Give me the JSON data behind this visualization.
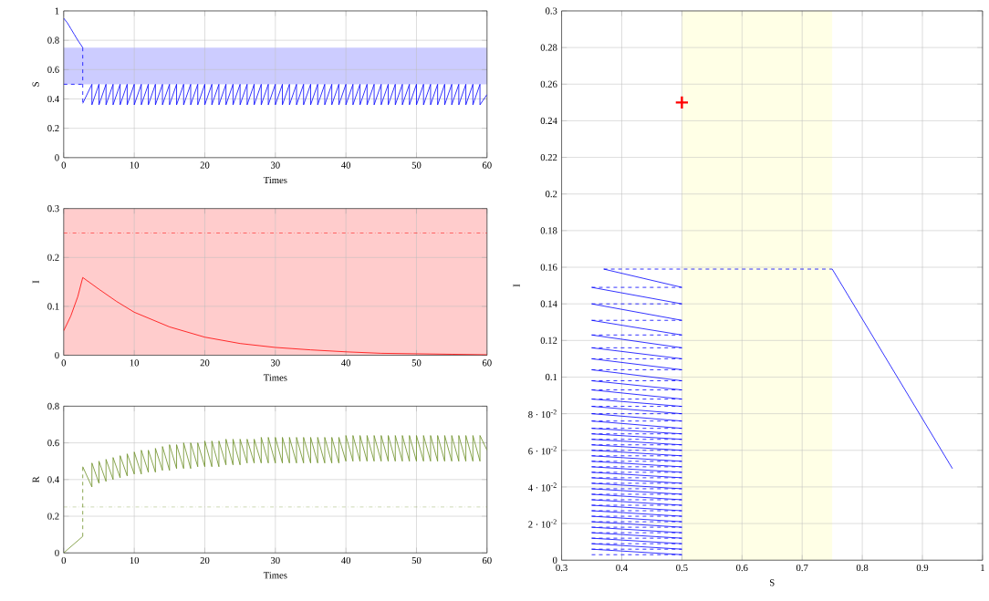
{
  "chart_data": [
    {
      "type": "line",
      "xlabel": "Times",
      "ylabel": "S",
      "xlim": [
        0,
        60
      ],
      "ylim": [
        0,
        1
      ],
      "xticks": [
        0,
        10,
        20,
        30,
        40,
        50,
        60
      ],
      "yticks": [
        0,
        0.2,
        0.4,
        0.6,
        0.8,
        1
      ],
      "grid": true,
      "bands": [
        {
          "axis": "y",
          "from": 0.5,
          "to": 0.75,
          "color": "#ccccff"
        }
      ],
      "series": [
        {
          "color": "#0000ff",
          "line_style": "solid",
          "x": [
            0,
            0.5,
            1,
            1.5,
            2,
            2.7
          ],
          "values": [
            0.95,
            0.92,
            0.88,
            0.84,
            0.8,
            0.75
          ]
        },
        {
          "color": "#0000ff",
          "line_style": "dashed",
          "x": [
            2.7,
            2.7
          ],
          "values": [
            0.75,
            0.37
          ]
        },
        {
          "color": "#0000ff",
          "line_style": "dashed",
          "x": [
            0,
            2.7
          ],
          "values": [
            0.5,
            0.5
          ]
        },
        {
          "color": "#0000ff",
          "line_style": "solid",
          "x": [
            2.7,
            4,
            4,
            5,
            5,
            6,
            6,
            7,
            7,
            8,
            8,
            9,
            9,
            10,
            10,
            11,
            11,
            12,
            12,
            13,
            13,
            14,
            14,
            15,
            15,
            16,
            16,
            17,
            17,
            18,
            18,
            19,
            19,
            20,
            20,
            21,
            21,
            22,
            22,
            23,
            23,
            24,
            24,
            25,
            25,
            26,
            26,
            27,
            27,
            28,
            28,
            29,
            29,
            30,
            30,
            31,
            31,
            32,
            32,
            33,
            33,
            34,
            34,
            35,
            35,
            36,
            36,
            37,
            37,
            38,
            38,
            39,
            39,
            40,
            40,
            41,
            41,
            42,
            42,
            43,
            43,
            44,
            44,
            45,
            45,
            46,
            46,
            47,
            47,
            48,
            48,
            49,
            49,
            50,
            50,
            51,
            51,
            52,
            52,
            53,
            53,
            54,
            54,
            55,
            55,
            56,
            56,
            57,
            57,
            58,
            58,
            59,
            59,
            60
          ],
          "values": [
            0.37,
            0.5,
            0.36,
            0.5,
            0.36,
            0.5,
            0.36,
            0.5,
            0.36,
            0.5,
            0.36,
            0.5,
            0.36,
            0.5,
            0.36,
            0.5,
            0.36,
            0.5,
            0.36,
            0.5,
            0.36,
            0.5,
            0.36,
            0.5,
            0.36,
            0.5,
            0.36,
            0.5,
            0.36,
            0.5,
            0.36,
            0.5,
            0.36,
            0.5,
            0.36,
            0.5,
            0.36,
            0.5,
            0.36,
            0.5,
            0.36,
            0.5,
            0.36,
            0.5,
            0.36,
            0.5,
            0.36,
            0.5,
            0.36,
            0.5,
            0.36,
            0.5,
            0.36,
            0.5,
            0.36,
            0.5,
            0.36,
            0.5,
            0.36,
            0.5,
            0.36,
            0.5,
            0.36,
            0.5,
            0.36,
            0.5,
            0.36,
            0.5,
            0.36,
            0.5,
            0.36,
            0.5,
            0.36,
            0.5,
            0.36,
            0.5,
            0.36,
            0.5,
            0.36,
            0.5,
            0.36,
            0.5,
            0.36,
            0.5,
            0.36,
            0.5,
            0.36,
            0.5,
            0.36,
            0.5,
            0.36,
            0.5,
            0.36,
            0.5,
            0.36,
            0.5,
            0.36,
            0.5,
            0.36,
            0.5,
            0.36,
            0.5,
            0.36,
            0.5,
            0.36,
            0.5,
            0.36,
            0.5,
            0.36,
            0.5,
            0.36,
            0.5,
            0.36,
            0.43
          ]
        }
      ]
    },
    {
      "type": "line",
      "xlabel": "Times",
      "ylabel": "I",
      "xlim": [
        0,
        60
      ],
      "ylim": [
        0,
        0.3
      ],
      "xticks": [
        0,
        10,
        20,
        30,
        40,
        50,
        60
      ],
      "yticks": [
        0,
        0.1,
        0.2,
        0.3
      ],
      "grid": true,
      "bands": [
        {
          "axis": "y",
          "from": 0,
          "to": 0.3,
          "color": "#ffcccc"
        }
      ],
      "ref_lines": [
        {
          "axis": "y",
          "value": 0.25,
          "color": "#ff0000",
          "line_style": "dashdot"
        }
      ],
      "series": [
        {
          "color": "#ff0000",
          "line_style": "solid",
          "x": [
            0,
            1,
            2,
            2.7,
            5,
            7.5,
            10,
            15,
            20,
            25,
            30,
            35,
            40,
            45,
            50,
            55,
            60
          ],
          "values": [
            0.05,
            0.08,
            0.12,
            0.159,
            0.135,
            0.11,
            0.088,
            0.058,
            0.037,
            0.024,
            0.016,
            0.011,
            0.007,
            0.004,
            0.003,
            0.002,
            0.001
          ]
        }
      ]
    },
    {
      "type": "line",
      "xlabel": "Times",
      "ylabel": "R",
      "xlim": [
        0,
        60
      ],
      "ylim": [
        0,
        0.8
      ],
      "xticks": [
        0,
        10,
        20,
        30,
        40,
        50,
        60
      ],
      "yticks": [
        0,
        0.2,
        0.4,
        0.6,
        0.8
      ],
      "grid": true,
      "ref_lines": [
        {
          "axis": "y",
          "value": 0.25,
          "color": "#6b8e23",
          "line_style": "dashdot"
        }
      ],
      "series": [
        {
          "color": "#6b8e23",
          "line_style": "solid",
          "x": [
            0,
            2.7
          ],
          "values": [
            0,
            0.09
          ]
        },
        {
          "color": "#6b8e23",
          "line_style": "dashed",
          "x": [
            2.7,
            2.7
          ],
          "values": [
            0.09,
            0.47
          ]
        },
        {
          "color": "#6b8e23",
          "line_style": "solid",
          "x": [
            2.7,
            4,
            4,
            5,
            5,
            6,
            6,
            7,
            7,
            8,
            8,
            9,
            9,
            10,
            10,
            11,
            11,
            12,
            12,
            13,
            13,
            14,
            14,
            15,
            15,
            16,
            16,
            17,
            17,
            18,
            18,
            19,
            19,
            20,
            20,
            21,
            21,
            22,
            22,
            23,
            23,
            24,
            24,
            25,
            25,
            26,
            26,
            27,
            27,
            28,
            28,
            29,
            29,
            30,
            30,
            31,
            31,
            32,
            32,
            33,
            33,
            34,
            34,
            35,
            35,
            36,
            36,
            37,
            37,
            38,
            38,
            39,
            39,
            40,
            40,
            41,
            41,
            42,
            42,
            43,
            43,
            44,
            44,
            45,
            45,
            46,
            46,
            47,
            47,
            48,
            48,
            49,
            49,
            50,
            50,
            51,
            51,
            52,
            52,
            53,
            53,
            54,
            54,
            55,
            55,
            56,
            56,
            57,
            57,
            58,
            58,
            59,
            59,
            60
          ],
          "values": [
            0.47,
            0.36,
            0.49,
            0.38,
            0.5,
            0.39,
            0.51,
            0.4,
            0.52,
            0.41,
            0.53,
            0.42,
            0.54,
            0.43,
            0.55,
            0.43,
            0.56,
            0.44,
            0.56,
            0.44,
            0.57,
            0.45,
            0.58,
            0.45,
            0.59,
            0.46,
            0.59,
            0.46,
            0.6,
            0.46,
            0.6,
            0.47,
            0.6,
            0.47,
            0.61,
            0.47,
            0.61,
            0.47,
            0.61,
            0.48,
            0.62,
            0.48,
            0.62,
            0.48,
            0.62,
            0.49,
            0.62,
            0.49,
            0.62,
            0.49,
            0.63,
            0.49,
            0.63,
            0.49,
            0.63,
            0.49,
            0.63,
            0.49,
            0.63,
            0.49,
            0.63,
            0.49,
            0.63,
            0.49,
            0.63,
            0.49,
            0.63,
            0.49,
            0.63,
            0.49,
            0.63,
            0.49,
            0.63,
            0.5,
            0.64,
            0.5,
            0.64,
            0.5,
            0.64,
            0.5,
            0.64,
            0.5,
            0.64,
            0.5,
            0.64,
            0.5,
            0.64,
            0.5,
            0.64,
            0.5,
            0.64,
            0.5,
            0.64,
            0.5,
            0.64,
            0.5,
            0.64,
            0.5,
            0.64,
            0.5,
            0.64,
            0.5,
            0.64,
            0.5,
            0.64,
            0.5,
            0.64,
            0.5,
            0.64,
            0.5,
            0.64,
            0.5,
            0.64,
            0.56
          ]
        }
      ]
    },
    {
      "type": "line",
      "xlabel": "S",
      "ylabel": "I",
      "xlim": [
        0.3,
        1
      ],
      "ylim": [
        0,
        0.3
      ],
      "xticks": [
        0.3,
        0.4,
        0.5,
        0.6,
        0.7,
        0.8,
        0.9,
        1
      ],
      "yticks": [
        0,
        {
          "value": 0.02,
          "label": "2 · 10$^{-2}$"
        },
        {
          "value": 0.04,
          "label": "4 · 10$^{-2}$"
        },
        {
          "value": 0.06,
          "label": "6 · 10$^{-2}$"
        },
        {
          "value": 0.08,
          "label": "8 · 10$^{-2}$"
        },
        0.1,
        0.12,
        0.14,
        0.16,
        0.18,
        0.2,
        0.22,
        0.24,
        0.26,
        0.28,
        0.3
      ],
      "grid": true,
      "bands": [
        {
          "axis": "x",
          "from": 0.5,
          "to": 0.75,
          "color": "#ffffe6"
        }
      ],
      "series": [
        {
          "color": "#0000ff",
          "line_style": "solid",
          "x": [
            0.95,
            0.75
          ],
          "values": [
            0.05,
            0.159
          ]
        },
        {
          "color": "#0000ff",
          "line_style": "solid",
          "x": [
            0.37,
            0.5
          ],
          "values": [
            0.159,
            0.149
          ]
        },
        {
          "color": "#0000ff",
          "line_style": "solid",
          "x": [
            0.35,
            0.5
          ],
          "values": [
            0.149,
            0.14
          ]
        },
        {
          "color": "#0000ff",
          "line_style": "solid",
          "x": [
            0.35,
            0.5
          ],
          "values": [
            0.14,
            0.131
          ]
        },
        {
          "color": "#0000ff",
          "line_style": "solid",
          "x": [
            0.35,
            0.5
          ],
          "values": [
            0.131,
            0.123
          ]
        },
        {
          "color": "#0000ff",
          "line_style": "solid",
          "x": [
            0.35,
            0.5
          ],
          "values": [
            0.123,
            0.116
          ]
        },
        {
          "color": "#0000ff",
          "line_style": "solid",
          "x": [
            0.35,
            0.5
          ],
          "values": [
            0.116,
            0.11
          ]
        },
        {
          "color": "#0000ff",
          "line_style": "solid",
          "x": [
            0.35,
            0.5
          ],
          "values": [
            0.11,
            0.104
          ]
        },
        {
          "color": "#0000ff",
          "line_style": "solid",
          "x": [
            0.35,
            0.5
          ],
          "values": [
            0.104,
            0.098
          ]
        },
        {
          "color": "#0000ff",
          "line_style": "solid",
          "x": [
            0.35,
            0.5
          ],
          "values": [
            0.098,
            0.093
          ]
        },
        {
          "color": "#0000ff",
          "line_style": "solid",
          "x": [
            0.35,
            0.5
          ],
          "values": [
            0.093,
            0.088
          ]
        },
        {
          "color": "#0000ff",
          "line_style": "solid",
          "x": [
            0.35,
            0.5
          ],
          "values": [
            0.088,
            0.084
          ]
        },
        {
          "color": "#0000ff",
          "line_style": "solid",
          "x": [
            0.35,
            0.5
          ],
          "values": [
            0.084,
            0.08
          ]
        },
        {
          "color": "#0000ff",
          "line_style": "solid",
          "x": [
            0.35,
            0.5
          ],
          "values": [
            0.08,
            0.076
          ]
        },
        {
          "color": "#0000ff",
          "line_style": "solid",
          "x": [
            0.35,
            0.5
          ],
          "values": [
            0.076,
            0.072
          ]
        },
        {
          "color": "#0000ff",
          "line_style": "solid",
          "x": [
            0.35,
            0.5
          ],
          "values": [
            0.072,
            0.069
          ]
        },
        {
          "color": "#0000ff",
          "line_style": "solid",
          "x": [
            0.35,
            0.5
          ],
          "values": [
            0.069,
            0.066
          ]
        },
        {
          "color": "#0000ff",
          "line_style": "solid",
          "x": [
            0.35,
            0.5
          ],
          "values": [
            0.066,
            0.063
          ]
        },
        {
          "color": "#0000ff",
          "line_style": "solid",
          "x": [
            0.35,
            0.5
          ],
          "values": [
            0.063,
            0.06
          ]
        },
        {
          "color": "#0000ff",
          "line_style": "solid",
          "x": [
            0.35,
            0.5
          ],
          "values": [
            0.06,
            0.057
          ]
        },
        {
          "color": "#0000ff",
          "line_style": "solid",
          "x": [
            0.35,
            0.5
          ],
          "values": [
            0.057,
            0.054
          ]
        },
        {
          "color": "#0000ff",
          "line_style": "solid",
          "x": [
            0.35,
            0.5
          ],
          "values": [
            0.054,
            0.051
          ]
        },
        {
          "color": "#0000ff",
          "line_style": "solid",
          "x": [
            0.35,
            0.5
          ],
          "values": [
            0.051,
            0.048
          ]
        },
        {
          "color": "#0000ff",
          "line_style": "solid",
          "x": [
            0.35,
            0.5
          ],
          "values": [
            0.048,
            0.045
          ]
        },
        {
          "color": "#0000ff",
          "line_style": "solid",
          "x": [
            0.35,
            0.5
          ],
          "values": [
            0.045,
            0.042
          ]
        },
        {
          "color": "#0000ff",
          "line_style": "solid",
          "x": [
            0.35,
            0.5
          ],
          "values": [
            0.042,
            0.039
          ]
        },
        {
          "color": "#0000ff",
          "line_style": "solid",
          "x": [
            0.35,
            0.5
          ],
          "values": [
            0.039,
            0.036
          ]
        },
        {
          "color": "#0000ff",
          "line_style": "solid",
          "x": [
            0.35,
            0.5
          ],
          "values": [
            0.036,
            0.033
          ]
        },
        {
          "color": "#0000ff",
          "line_style": "solid",
          "x": [
            0.35,
            0.5
          ],
          "values": [
            0.033,
            0.03
          ]
        },
        {
          "color": "#0000ff",
          "line_style": "solid",
          "x": [
            0.35,
            0.5
          ],
          "values": [
            0.03,
            0.027
          ]
        },
        {
          "color": "#0000ff",
          "line_style": "solid",
          "x": [
            0.35,
            0.5
          ],
          "values": [
            0.027,
            0.024
          ]
        },
        {
          "color": "#0000ff",
          "line_style": "solid",
          "x": [
            0.35,
            0.5
          ],
          "values": [
            0.024,
            0.021
          ]
        },
        {
          "color": "#0000ff",
          "line_style": "solid",
          "x": [
            0.35,
            0.5
          ],
          "values": [
            0.021,
            0.018
          ]
        },
        {
          "color": "#0000ff",
          "line_style": "solid",
          "x": [
            0.35,
            0.5
          ],
          "values": [
            0.018,
            0.015
          ]
        },
        {
          "color": "#0000ff",
          "line_style": "solid",
          "x": [
            0.35,
            0.5
          ],
          "values": [
            0.015,
            0.012
          ]
        },
        {
          "color": "#0000ff",
          "line_style": "solid",
          "x": [
            0.35,
            0.5
          ],
          "values": [
            0.012,
            0.009
          ]
        },
        {
          "color": "#0000ff",
          "line_style": "solid",
          "x": [
            0.35,
            0.5
          ],
          "values": [
            0.009,
            0.006
          ]
        },
        {
          "color": "#0000ff",
          "line_style": "solid",
          "x": [
            0.35,
            0.5
          ],
          "values": [
            0.006,
            0.003
          ]
        },
        {
          "color": "#0000ff",
          "line_style": "dashed",
          "x": [
            0.37,
            0.75
          ],
          "values": [
            0.159,
            0.159
          ]
        },
        {
          "color": "#0000ff",
          "line_style": "dashed",
          "x": [
            0.35,
            0.5
          ],
          "values": [
            0.149,
            0.149
          ]
        },
        {
          "color": "#0000ff",
          "line_style": "dashed",
          "x": [
            0.35,
            0.5
          ],
          "values": [
            0.14,
            0.14
          ]
        },
        {
          "color": "#0000ff",
          "line_style": "dashed",
          "x": [
            0.35,
            0.5
          ],
          "values": [
            0.131,
            0.131
          ]
        },
        {
          "color": "#0000ff",
          "line_style": "dashed",
          "x": [
            0.35,
            0.5
          ],
          "values": [
            0.123,
            0.123
          ]
        },
        {
          "color": "#0000ff",
          "line_style": "dashed",
          "x": [
            0.35,
            0.5
          ],
          "values": [
            0.116,
            0.116
          ]
        },
        {
          "color": "#0000ff",
          "line_style": "dashed",
          "x": [
            0.35,
            0.5
          ],
          "values": [
            0.11,
            0.11
          ]
        },
        {
          "color": "#0000ff",
          "line_style": "dashed",
          "x": [
            0.35,
            0.5
          ],
          "values": [
            0.104,
            0.104
          ]
        },
        {
          "color": "#0000ff",
          "line_style": "dashed",
          "x": [
            0.35,
            0.5
          ],
          "values": [
            0.098,
            0.098
          ]
        },
        {
          "color": "#0000ff",
          "line_style": "dashed",
          "x": [
            0.35,
            0.5
          ],
          "values": [
            0.093,
            0.093
          ]
        },
        {
          "color": "#0000ff",
          "line_style": "dashed",
          "x": [
            0.35,
            0.5
          ],
          "values": [
            0.088,
            0.088
          ]
        },
        {
          "color": "#0000ff",
          "line_style": "dashed",
          "x": [
            0.35,
            0.5
          ],
          "values": [
            0.084,
            0.084
          ]
        },
        {
          "color": "#0000ff",
          "line_style": "dashed",
          "x": [
            0.35,
            0.5
          ],
          "values": [
            0.08,
            0.08
          ]
        },
        {
          "color": "#0000ff",
          "line_style": "dashed",
          "x": [
            0.35,
            0.5
          ],
          "values": [
            0.076,
            0.076
          ]
        },
        {
          "color": "#0000ff",
          "line_style": "dashed",
          "x": [
            0.35,
            0.5
          ],
          "values": [
            0.072,
            0.072
          ]
        },
        {
          "color": "#0000ff",
          "line_style": "dashed",
          "x": [
            0.35,
            0.5
          ],
          "values": [
            0.069,
            0.069
          ]
        },
        {
          "color": "#0000ff",
          "line_style": "dashed",
          "x": [
            0.35,
            0.5
          ],
          "values": [
            0.066,
            0.066
          ]
        },
        {
          "color": "#0000ff",
          "line_style": "dashed",
          "x": [
            0.35,
            0.5
          ],
          "values": [
            0.063,
            0.063
          ]
        },
        {
          "color": "#0000ff",
          "line_style": "dashed",
          "x": [
            0.35,
            0.5
          ],
          "values": [
            0.06,
            0.06
          ]
        },
        {
          "color": "#0000ff",
          "line_style": "dashed",
          "x": [
            0.35,
            0.5
          ],
          "values": [
            0.057,
            0.057
          ]
        },
        {
          "color": "#0000ff",
          "line_style": "dashed",
          "x": [
            0.35,
            0.5
          ],
          "values": [
            0.054,
            0.054
          ]
        },
        {
          "color": "#0000ff",
          "line_style": "dashed",
          "x": [
            0.35,
            0.5
          ],
          "values": [
            0.051,
            0.051
          ]
        },
        {
          "color": "#0000ff",
          "line_style": "dashed",
          "x": [
            0.35,
            0.5
          ],
          "values": [
            0.048,
            0.048
          ]
        },
        {
          "color": "#0000ff",
          "line_style": "dashed",
          "x": [
            0.35,
            0.5
          ],
          "values": [
            0.045,
            0.045
          ]
        },
        {
          "color": "#0000ff",
          "line_style": "dashed",
          "x": [
            0.35,
            0.5
          ],
          "values": [
            0.042,
            0.042
          ]
        },
        {
          "color": "#0000ff",
          "line_style": "dashed",
          "x": [
            0.35,
            0.5
          ],
          "values": [
            0.039,
            0.039
          ]
        },
        {
          "color": "#0000ff",
          "line_style": "dashed",
          "x": [
            0.35,
            0.5
          ],
          "values": [
            0.036,
            0.036
          ]
        },
        {
          "color": "#0000ff",
          "line_style": "dashed",
          "x": [
            0.35,
            0.5
          ],
          "values": [
            0.033,
            0.033
          ]
        },
        {
          "color": "#0000ff",
          "line_style": "dashed",
          "x": [
            0.35,
            0.5
          ],
          "values": [
            0.03,
            0.03
          ]
        },
        {
          "color": "#0000ff",
          "line_style": "dashed",
          "x": [
            0.35,
            0.5
          ],
          "values": [
            0.027,
            0.027
          ]
        },
        {
          "color": "#0000ff",
          "line_style": "dashed",
          "x": [
            0.35,
            0.5
          ],
          "values": [
            0.024,
            0.024
          ]
        },
        {
          "color": "#0000ff",
          "line_style": "dashed",
          "x": [
            0.35,
            0.5
          ],
          "values": [
            0.021,
            0.021
          ]
        },
        {
          "color": "#0000ff",
          "line_style": "dashed",
          "x": [
            0.35,
            0.5
          ],
          "values": [
            0.018,
            0.018
          ]
        },
        {
          "color": "#0000ff",
          "line_style": "dashed",
          "x": [
            0.35,
            0.5
          ],
          "values": [
            0.015,
            0.015
          ]
        },
        {
          "color": "#0000ff",
          "line_style": "dashed",
          "x": [
            0.35,
            0.5
          ],
          "values": [
            0.012,
            0.012
          ]
        },
        {
          "color": "#0000ff",
          "line_style": "dashed",
          "x": [
            0.35,
            0.5
          ],
          "values": [
            0.009,
            0.009
          ]
        },
        {
          "color": "#0000ff",
          "line_style": "dashed",
          "x": [
            0.35,
            0.5
          ],
          "values": [
            0.006,
            0.006
          ]
        },
        {
          "color": "#0000ff",
          "line_style": "dashed",
          "x": [
            0.35,
            0.5
          ],
          "values": [
            0.003,
            0.003
          ]
        },
        {
          "type": "scatter",
          "marker": "cross",
          "color": "#ff0000",
          "x": [
            0.5
          ],
          "values": [
            0.25
          ]
        }
      ]
    }
  ]
}
